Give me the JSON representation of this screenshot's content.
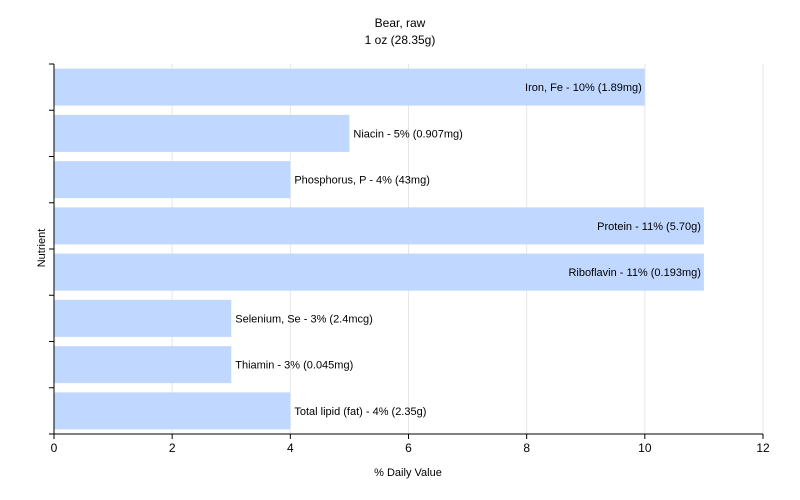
{
  "chart_data": {
    "type": "bar",
    "orientation": "horizontal",
    "title": "Bear, raw",
    "subtitle": "1 oz (28.35g)",
    "xlabel": "% Daily Value",
    "ylabel": "Nutrient",
    "xlim": [
      0,
      12
    ],
    "xticks": [
      0,
      2,
      4,
      6,
      8,
      10,
      12
    ],
    "grid": true,
    "bar_color": "#c0d8ff",
    "categories": [
      "Iron, Fe",
      "Niacin",
      "Phosphorus, P",
      "Protein",
      "Riboflavin",
      "Selenium, Se",
      "Thiamin",
      "Total lipid (fat)"
    ],
    "values": [
      10,
      5,
      4,
      11,
      11,
      3,
      3,
      4
    ],
    "labels": [
      "Iron, Fe - 10% (1.89mg)",
      "Niacin - 5% (0.907mg)",
      "Phosphorus, P - 4% (43mg)",
      "Protein - 11% (5.70g)",
      "Riboflavin - 11% (0.193mg)",
      "Selenium, Se - 3% (2.4mcg)",
      "Thiamin - 3% (0.045mg)",
      "Total lipid (fat) - 4% (2.35g)"
    ]
  }
}
